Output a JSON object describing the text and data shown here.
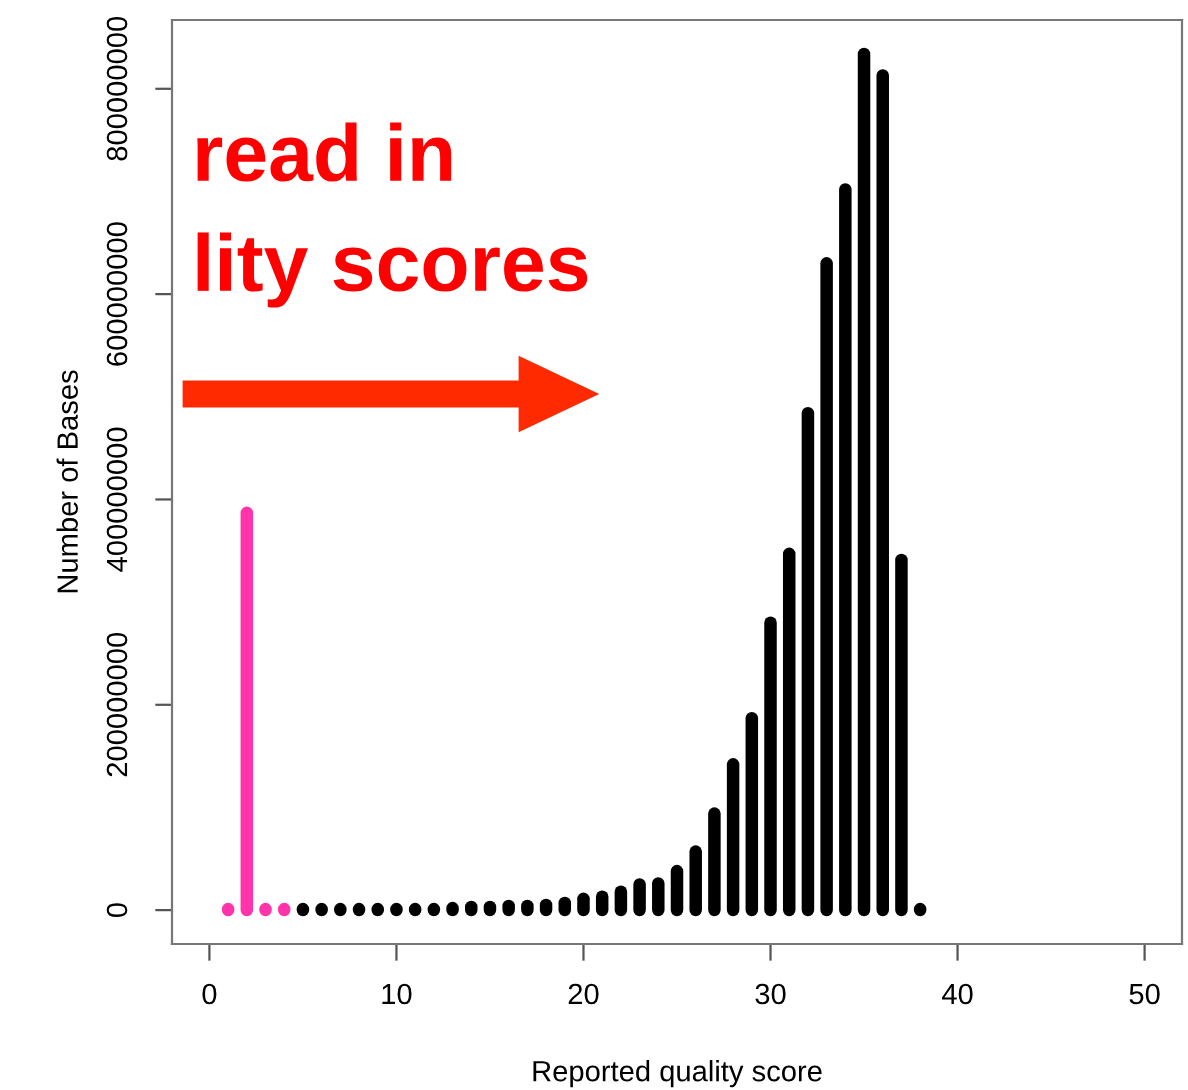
{
  "chart_data": {
    "type": "bar",
    "xlabel": "Reported quality score",
    "ylabel": "Number of Bases",
    "x": [
      1,
      2,
      3,
      4,
      5,
      6,
      7,
      8,
      9,
      10,
      11,
      12,
      13,
      14,
      15,
      16,
      17,
      18,
      19,
      20,
      21,
      22,
      23,
      24,
      25,
      26,
      27,
      28,
      29,
      30,
      31,
      32,
      33,
      34,
      35,
      36,
      37,
      38
    ],
    "values": [
      1000000,
      387000000,
      1000000,
      1000000,
      1000000,
      1000000,
      1000000,
      1000000,
      1000000,
      1000000,
      1000000,
      1000000,
      2000000,
      3000000,
      3000000,
      4000000,
      4000000,
      5000000,
      7000000,
      11000000,
      13000000,
      18000000,
      25000000,
      26000000,
      38000000,
      57000000,
      94000000,
      142000000,
      187000000,
      280000000,
      347000000,
      484000000,
      630000000,
      702000000,
      834000000,
      813000000,
      341000000,
      1000000
    ],
    "colors": [
      "#ff33aa",
      "#ff33aa",
      "#ff33aa",
      "#ff33aa",
      "#000000",
      "#000000",
      "#000000",
      "#000000",
      "#000000",
      "#000000",
      "#000000",
      "#000000",
      "#000000",
      "#000000",
      "#000000",
      "#000000",
      "#000000",
      "#000000",
      "#000000",
      "#000000",
      "#000000",
      "#000000",
      "#000000",
      "#000000",
      "#000000",
      "#000000",
      "#000000",
      "#000000",
      "#000000",
      "#000000",
      "#000000",
      "#000000",
      "#000000",
      "#000000",
      "#000000",
      "#000000",
      "#000000",
      "#000000"
    ],
    "xlim": [
      -2,
      52
    ],
    "xticks": [
      0,
      10,
      20,
      30,
      40,
      50
    ],
    "ylim": [
      -33000000,
      867000000
    ],
    "yticks": [
      0,
      200000000,
      400000000,
      600000000,
      800000000
    ],
    "grid": false,
    "legend": false,
    "annotations": [
      "read in",
      "lity scores"
    ]
  }
}
